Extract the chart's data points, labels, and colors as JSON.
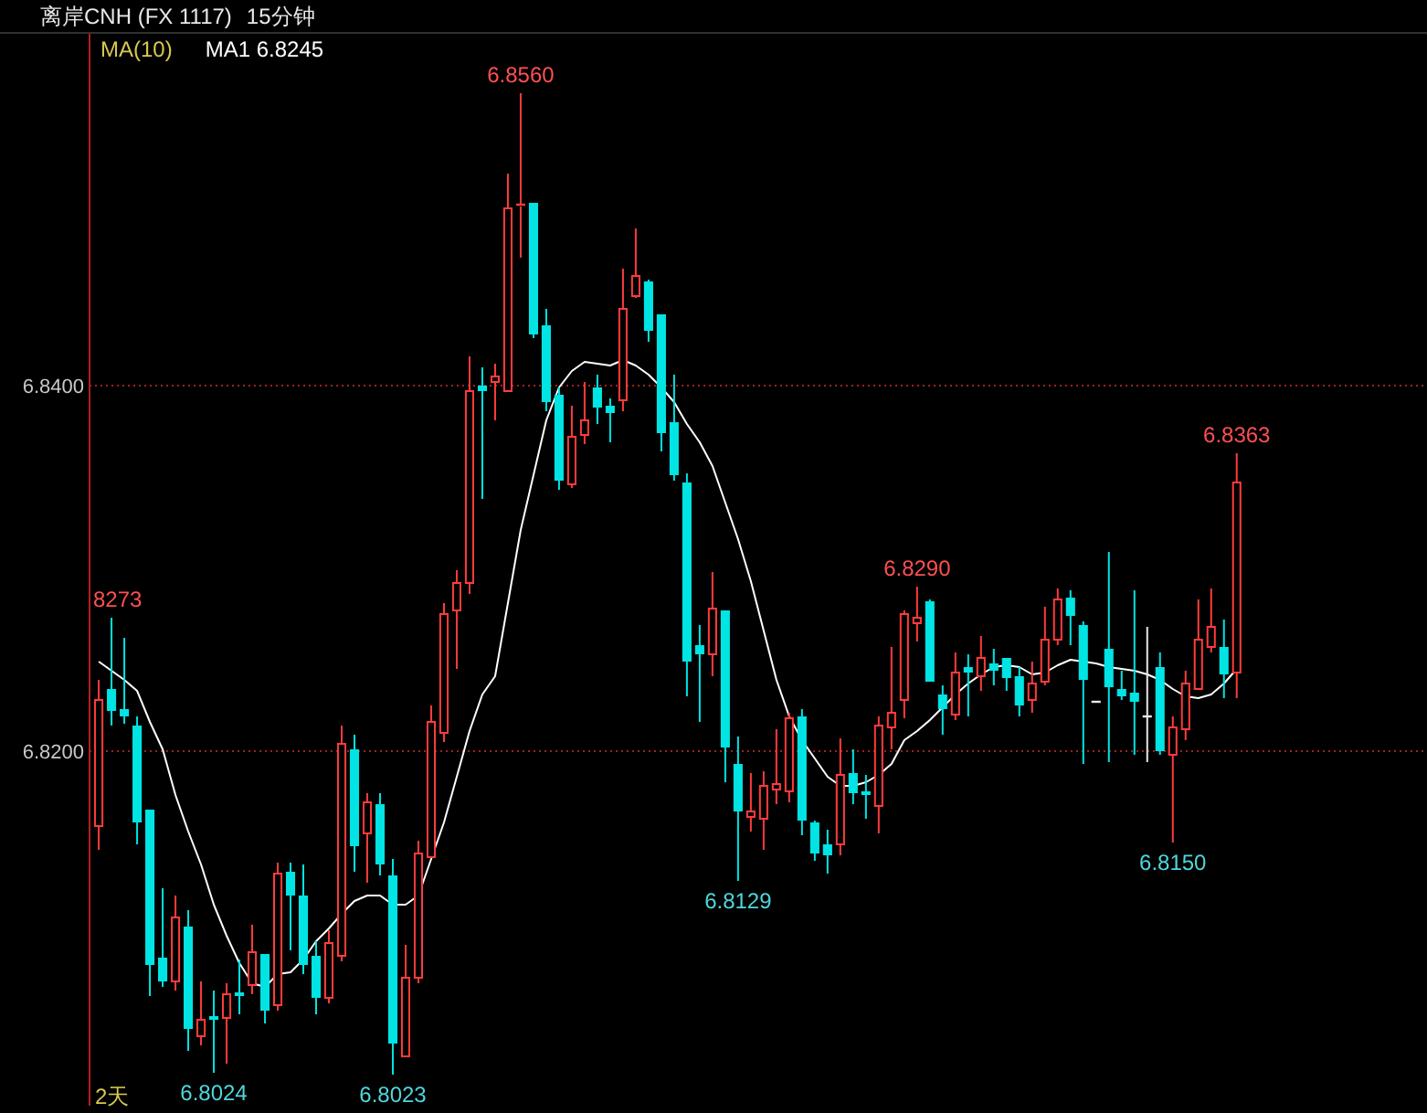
{
  "chart_data": {
    "type": "candlestick",
    "title": "离岸CNH (FX 1117)",
    "subtitle": "15分钟",
    "legend_title": "MA(10)",
    "legend": "top left",
    "categories": [
      null,
      null,
      null,
      null,
      null,
      null,
      null,
      null,
      null,
      null,
      null,
      null,
      null,
      null,
      null,
      null,
      null,
      null,
      null,
      null,
      null,
      null,
      null,
      null,
      null,
      null,
      null,
      null,
      null,
      null,
      null,
      null,
      null,
      null,
      null,
      null,
      null,
      null,
      null,
      null,
      null,
      null,
      null,
      null,
      null,
      null,
      null,
      null,
      null,
      null,
      null,
      null,
      null,
      null,
      null,
      null,
      null,
      null,
      null,
      null,
      null,
      null,
      null,
      null,
      null,
      null,
      null,
      null,
      null,
      null,
      null,
      null,
      null,
      null,
      null,
      null,
      null,
      null,
      null,
      null,
      null,
      null,
      null,
      null,
      null,
      null,
      null,
      null,
      null,
      null
    ],
    "ohlc": [
      [
        6.8159,
        6.8239,
        6.8146,
        6.8228
      ],
      [
        6.8234,
        6.8273,
        6.8214,
        6.8222
      ],
      [
        6.8223,
        6.8262,
        6.8215,
        6.8219
      ],
      [
        6.8214,
        6.8219,
        6.8149,
        6.8161
      ],
      [
        6.8168,
        6.8168,
        6.8066,
        6.8083
      ],
      [
        6.8087,
        6.8125,
        6.8071,
        6.8074
      ],
      [
        6.8074,
        6.8121,
        6.8069,
        6.8109
      ],
      [
        6.8104,
        6.8113,
        6.8036,
        6.8048
      ],
      [
        6.8044,
        6.8074,
        6.8039,
        6.8053
      ],
      [
        6.8055,
        6.8069,
        6.8024,
        6.8053
      ],
      [
        6.8054,
        6.8073,
        6.8029,
        6.8067
      ],
      [
        6.8068,
        6.8086,
        6.8056,
        6.8066
      ],
      [
        6.8072,
        6.8105,
        6.8067,
        6.809
      ],
      [
        6.8089,
        6.8089,
        6.8051,
        6.8058
      ],
      [
        6.8061,
        6.8139,
        6.8058,
        6.8133
      ],
      [
        6.8134,
        6.8139,
        6.8091,
        6.8121
      ],
      [
        6.8121,
        6.8138,
        6.8078,
        6.8083
      ],
      [
        6.8088,
        6.8096,
        6.8056,
        6.8065
      ],
      [
        6.8065,
        6.8102,
        6.8062,
        6.8095
      ],
      [
        6.8088,
        6.8214,
        6.8085,
        6.8204
      ],
      [
        6.8201,
        6.8209,
        6.8134,
        6.8148
      ],
      [
        6.8155,
        6.8177,
        6.8128,
        6.8172
      ],
      [
        6.8171,
        6.8177,
        6.8132,
        6.8138
      ],
      [
        6.8132,
        6.8141,
        6.8023,
        6.804
      ],
      [
        6.8033,
        6.8094,
        6.8033,
        6.8076
      ],
      [
        6.8076,
        6.8151,
        6.8073,
        6.8144
      ],
      [
        6.8142,
        6.8225,
        6.8142,
        6.8216
      ],
      [
        6.821,
        6.8281,
        6.8205,
        6.8275
      ],
      [
        6.8277,
        6.8299,
        6.8245,
        6.8292
      ],
      [
        6.8292,
        6.8416,
        6.8286,
        6.8397
      ],
      [
        6.84,
        6.841,
        6.8338,
        6.8397
      ],
      [
        6.8402,
        6.8412,
        6.8381,
        6.8405
      ],
      [
        6.8397,
        6.8516,
        6.8397,
        6.8497
      ],
      [
        6.8498,
        6.856,
        6.847,
        6.8499
      ],
      [
        6.85,
        6.85,
        6.8426,
        6.8428
      ],
      [
        6.8433,
        6.8442,
        6.8386,
        6.8391
      ],
      [
        6.8395,
        6.8399,
        6.8343,
        6.8348
      ],
      [
        6.8346,
        6.8389,
        6.8344,
        6.8372
      ],
      [
        6.8373,
        6.8402,
        6.8368,
        6.8381
      ],
      [
        6.8399,
        6.8406,
        6.8379,
        6.8388
      ],
      [
        6.8389,
        6.8393,
        6.8369,
        6.8385
      ],
      [
        6.8392,
        6.8464,
        6.8386,
        6.8442
      ],
      [
        6.8449,
        6.8486,
        6.8448,
        6.846
      ],
      [
        6.8457,
        6.8458,
        6.8424,
        6.843
      ],
      [
        6.8439,
        6.8439,
        6.8364,
        6.8374
      ],
      [
        6.838,
        6.8406,
        6.8348,
        6.8351
      ],
      [
        6.8347,
        6.8352,
        6.823,
        6.8249
      ],
      [
        6.8258,
        6.8269,
        6.8216,
        6.8253
      ],
      [
        6.8253,
        6.8298,
        6.8241,
        6.8278
      ],
      [
        6.8277,
        6.8277,
        6.8183,
        6.8202
      ],
      [
        6.8193,
        6.8208,
        6.8129,
        6.8167
      ],
      [
        6.8164,
        6.8188,
        6.8156,
        6.8167
      ],
      [
        6.8163,
        6.8189,
        6.8146,
        6.8181
      ],
      [
        6.8179,
        6.8212,
        6.8171,
        6.8182
      ],
      [
        6.8178,
        6.8221,
        6.8172,
        6.8218
      ],
      [
        6.8219,
        6.8223,
        6.8154,
        6.8162
      ],
      [
        6.8161,
        6.8162,
        6.814,
        6.8144
      ],
      [
        6.8149,
        6.8157,
        6.8133,
        6.8143
      ],
      [
        6.8149,
        6.8207,
        6.8143,
        6.8187
      ],
      [
        6.8188,
        6.8201,
        6.8171,
        6.8177
      ],
      [
        6.8178,
        6.8187,
        6.8163,
        6.8176
      ],
      [
        6.817,
        6.8219,
        6.8155,
        6.8214
      ],
      [
        6.8213,
        6.8257,
        6.8201,
        6.8221
      ],
      [
        6.8228,
        6.8277,
        6.8218,
        6.8275
      ],
      [
        6.827,
        6.829,
        6.826,
        6.8273
      ],
      [
        6.8282,
        6.8283,
        6.8238,
        6.8238
      ],
      [
        6.8231,
        6.8236,
        6.8209,
        6.8223
      ],
      [
        6.822,
        6.8254,
        6.8217,
        6.8243
      ],
      [
        6.8246,
        6.8253,
        6.8219,
        6.8243
      ],
      [
        6.8241,
        6.8263,
        6.8233,
        6.8251
      ],
      [
        6.8248,
        6.8256,
        6.8236,
        6.8244
      ],
      [
        6.8251,
        6.8251,
        6.8233,
        6.824
      ],
      [
        6.8241,
        6.8246,
        6.8219,
        6.8225
      ],
      [
        6.8228,
        6.8249,
        6.8221,
        6.8237
      ],
      [
        6.8238,
        6.8279,
        6.8236,
        6.8261
      ],
      [
        6.8261,
        6.8289,
        6.8258,
        6.8283
      ],
      [
        6.8284,
        6.8288,
        6.8258,
        6.8274
      ],
      [
        6.8269,
        6.8271,
        6.8193,
        6.8239
      ],
      [
        6.8227,
        6.8227,
        6.8227,
        6.8227
      ],
      [
        6.8256,
        6.8309,
        6.8194,
        6.8235
      ],
      [
        6.8234,
        6.8244,
        6.8228,
        6.823
      ],
      [
        6.8232,
        6.8288,
        6.8198,
        6.8227
      ],
      [
        6.8219,
        6.8268,
        6.8194,
        6.8219
      ],
      [
        6.8246,
        6.8254,
        6.8198,
        6.82
      ],
      [
        6.8198,
        6.8219,
        6.815,
        6.8213
      ],
      [
        6.8212,
        6.8244,
        6.8206,
        6.8237
      ],
      [
        6.8234,
        6.8283,
        6.8234,
        6.8261
      ],
      [
        6.8257,
        6.8289,
        6.8254,
        6.8268
      ],
      [
        6.8257,
        6.8272,
        6.8229,
        6.8242
      ],
      [
        6.8243,
        6.8363,
        6.8229,
        6.8347
      ]
    ],
    "series": [
      {
        "name": "MA1 6.8245",
        "type": "line",
        "color": "#ffffff",
        "values": [
          6.8249,
          6.8244,
          6.8239,
          6.8233,
          6.8216,
          6.8201,
          6.8176,
          6.8156,
          6.8138,
          6.8116,
          6.8099,
          6.8084,
          6.8073,
          6.8071,
          6.8078,
          6.8079,
          6.8086,
          6.8096,
          6.8103,
          6.8111,
          6.8118,
          6.8121,
          6.8121,
          6.8116,
          6.8116,
          6.8121,
          6.8141,
          6.8161,
          6.8186,
          6.8211,
          6.8231,
          6.8241,
          6.8281,
          6.8321,
          6.8351,
          6.8381,
          6.8399,
          6.8408,
          6.8413,
          6.8412,
          6.8411,
          6.8414,
          6.8411,
          6.8406,
          6.8399,
          6.8391,
          6.8379,
          6.8369,
          6.8356,
          6.8336,
          6.8316,
          6.8293,
          6.8266,
          6.8239,
          6.8219,
          6.8206,
          6.8196,
          6.8186,
          6.8181,
          6.8181,
          6.8183,
          6.8187,
          6.8193,
          6.8206,
          6.8211,
          6.8217,
          6.8224,
          6.8231,
          6.8237,
          6.8242,
          6.8246,
          6.8247,
          6.8246,
          6.8242,
          6.8243,
          6.8247,
          6.825,
          6.8249,
          6.8248,
          6.8246,
          6.8245,
          6.8244,
          6.8242,
          6.8239,
          6.8234,
          6.823,
          6.8229,
          6.8231,
          6.8237,
          6.8245
        ]
      }
    ],
    "ylim": [
      6.8006,
      6.8593
    ],
    "yticks": [
      {
        "value": 6.82,
        "label": "6.8200"
      },
      {
        "value": 6.84,
        "label": "6.8400"
      }
    ],
    "grid": "y",
    "tick_labels": "y",
    "marker": "none",
    "line_style": "solid",
    "annotations": [
      {
        "text": "6.8560",
        "y": 6.856
      },
      {
        "text": "8273",
        "y": 6.8273
      },
      {
        "text": "6.8290",
        "y": 6.829
      },
      {
        "text": "6.8363",
        "y": 6.8363
      },
      {
        "text": "6.8024",
        "y": 6.8024
      },
      {
        "text": "6.8023",
        "y": 6.8023
      },
      {
        "text": "6.8129",
        "y": 6.8129
      },
      {
        "text": "6.8150",
        "y": 6.815
      },
      "2天"
    ]
  }
}
